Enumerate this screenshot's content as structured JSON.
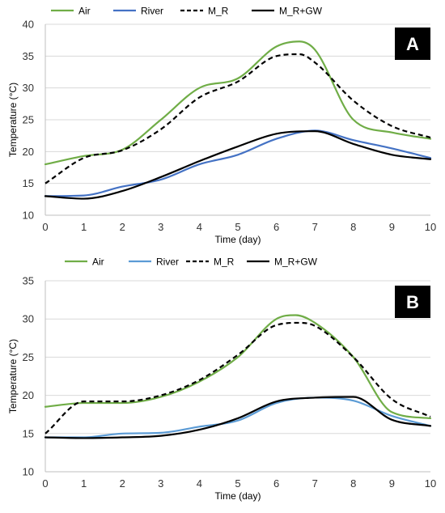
{
  "chart_data": [
    {
      "type": "line",
      "panel_label": "A",
      "xlabel": "Time (day)",
      "ylabel": "Temperature (°C)",
      "xlim": [
        0,
        10
      ],
      "ylim": [
        10,
        40
      ],
      "x_ticks": [
        0,
        1,
        2,
        3,
        4,
        5,
        6,
        7,
        8,
        9,
        10
      ],
      "y_ticks": [
        10,
        15,
        20,
        25,
        30,
        35,
        40
      ],
      "grid": "horizontal",
      "legend_position": "top",
      "series": [
        {
          "name": "Air",
          "color": "#70ad47",
          "dash": "solid",
          "points": [
            [
              0,
              18
            ],
            [
              1,
              19.3
            ],
            [
              2,
              20.3
            ],
            [
              3,
              25
            ],
            [
              4,
              30
            ],
            [
              5,
              31.5
            ],
            [
              6,
              36.5
            ],
            [
              6.6,
              37.3
            ],
            [
              7,
              36
            ],
            [
              8,
              25
            ],
            [
              9,
              23
            ],
            [
              10,
              22
            ]
          ]
        },
        {
          "name": "River",
          "color": "#4472c4",
          "dash": "solid",
          "points": [
            [
              0,
              13
            ],
            [
              1,
              13.1
            ],
            [
              2,
              14.5
            ],
            [
              3,
              15.6
            ],
            [
              4,
              18
            ],
            [
              5,
              19.5
            ],
            [
              6,
              22
            ],
            [
              7,
              23.3
            ],
            [
              8,
              21.8
            ],
            [
              9,
              20.5
            ],
            [
              10,
              19
            ]
          ]
        },
        {
          "name": "M_R",
          "color": "#000000",
          "dash": "dashed",
          "points": [
            [
              0,
              15
            ],
            [
              1,
              19
            ],
            [
              2,
              20.2
            ],
            [
              3,
              23.5
            ],
            [
              4,
              28.5
            ],
            [
              5,
              31
            ],
            [
              6,
              35
            ],
            [
              6.6,
              35.3
            ],
            [
              7,
              34
            ],
            [
              8,
              28
            ],
            [
              9,
              24
            ],
            [
              10,
              22.2
            ]
          ]
        },
        {
          "name": "M_R+GW",
          "color": "#000000",
          "dash": "solid",
          "points": [
            [
              0,
              13
            ],
            [
              1,
              12.6
            ],
            [
              2,
              13.8
            ],
            [
              3,
              16
            ],
            [
              4,
              18.5
            ],
            [
              5,
              20.8
            ],
            [
              6,
              22.8
            ],
            [
              7,
              23.2
            ],
            [
              8,
              21.2
            ],
            [
              9,
              19.5
            ],
            [
              10,
              18.8
            ]
          ]
        }
      ]
    },
    {
      "type": "line",
      "panel_label": "B",
      "xlabel": "Time (day)",
      "ylabel": "Temperature (°C)",
      "xlim": [
        0,
        10
      ],
      "ylim": [
        10,
        35
      ],
      "x_ticks": [
        0,
        1,
        2,
        3,
        4,
        5,
        6,
        7,
        8,
        9,
        10
      ],
      "y_ticks": [
        10,
        15,
        20,
        25,
        30,
        35
      ],
      "grid": "horizontal",
      "legend_position": "top",
      "series": [
        {
          "name": "Air",
          "color": "#70ad47",
          "dash": "solid",
          "points": [
            [
              0,
              18.5
            ],
            [
              1,
              19
            ],
            [
              2,
              19
            ],
            [
              3,
              19.8
            ],
            [
              4,
              21.8
            ],
            [
              5,
              25
            ],
            [
              6,
              30
            ],
            [
              6.5,
              30.5
            ],
            [
              7,
              29.5
            ],
            [
              8,
              25
            ],
            [
              9,
              17.8
            ],
            [
              10,
              17
            ]
          ]
        },
        {
          "name": "River",
          "color": "#5b9bd5",
          "dash": "solid",
          "points": [
            [
              0,
              14.5
            ],
            [
              1,
              14.5
            ],
            [
              2,
              15
            ],
            [
              3,
              15.1
            ],
            [
              4,
              15.9
            ],
            [
              5,
              16.7
            ],
            [
              6,
              19
            ],
            [
              7,
              19.7
            ],
            [
              8,
              19.3
            ],
            [
              9,
              17.3
            ],
            [
              10,
              16
            ]
          ]
        },
        {
          "name": "M_R",
          "color": "#000000",
          "dash": "dashed",
          "points": [
            [
              0,
              15
            ],
            [
              1,
              19.2
            ],
            [
              2,
              19.2
            ],
            [
              3,
              20
            ],
            [
              4,
              22
            ],
            [
              5,
              25.3
            ],
            [
              6,
              29.2
            ],
            [
              6.6,
              29.5
            ],
            [
              7,
              29.1
            ],
            [
              8,
              25
            ],
            [
              9,
              19.5
            ],
            [
              10,
              17.2
            ]
          ]
        },
        {
          "name": "M_R+GW",
          "color": "#000000",
          "dash": "solid",
          "points": [
            [
              0,
              14.5
            ],
            [
              1,
              14.4
            ],
            [
              2,
              14.5
            ],
            [
              3,
              14.7
            ],
            [
              4,
              15.5
            ],
            [
              5,
              17
            ],
            [
              6,
              19.2
            ],
            [
              7,
              19.7
            ],
            [
              8,
              19.8
            ],
            [
              9,
              16.8
            ],
            [
              10,
              16
            ]
          ]
        }
      ]
    }
  ]
}
